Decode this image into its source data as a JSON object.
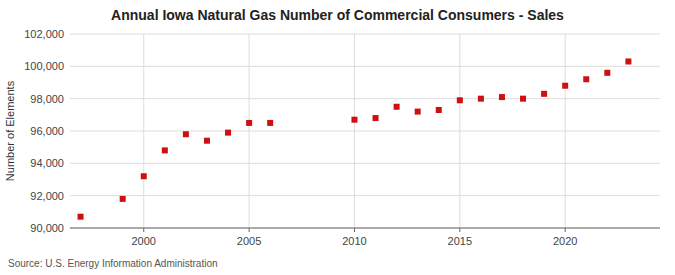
{
  "chart_data": {
    "type": "scatter",
    "title": "Annual Iowa Natural Gas Number of Commercial Consumers - Sales",
    "y_label": "Number of Elements",
    "source": "Source: U.S. Energy Information Administration",
    "x": [
      1997,
      1999,
      2000,
      2001,
      2002,
      2003,
      2004,
      2005,
      2006,
      2010,
      2011,
      2012,
      2013,
      2014,
      2015,
      2016,
      2017,
      2018,
      2019,
      2020,
      2021,
      2022,
      2023
    ],
    "values": [
      90700,
      91800,
      93200,
      94800,
      95800,
      95400,
      95900,
      96500,
      96500,
      96700,
      96800,
      97500,
      97200,
      97300,
      97900,
      98000,
      98100,
      98000,
      98300,
      98800,
      99200,
      99600,
      100300
    ],
    "color": "#cc1111",
    "marker": "square",
    "xlim": [
      1996.5,
      2024.5
    ],
    "ylim": [
      90000,
      102000
    ],
    "xticks": [
      2000,
      2005,
      2010,
      2015,
      2020
    ],
    "yticks": [
      {
        "value": 90000,
        "label": "90,000"
      },
      {
        "value": 92000,
        "label": "92,000"
      },
      {
        "value": 94000,
        "label": "94,000"
      },
      {
        "value": 96000,
        "label": "96,000"
      },
      {
        "value": 98000,
        "label": "98,000"
      },
      {
        "value": 100000,
        "label": "100,000"
      },
      {
        "value": 102000,
        "label": "102,000"
      }
    ],
    "grid": true
  }
}
